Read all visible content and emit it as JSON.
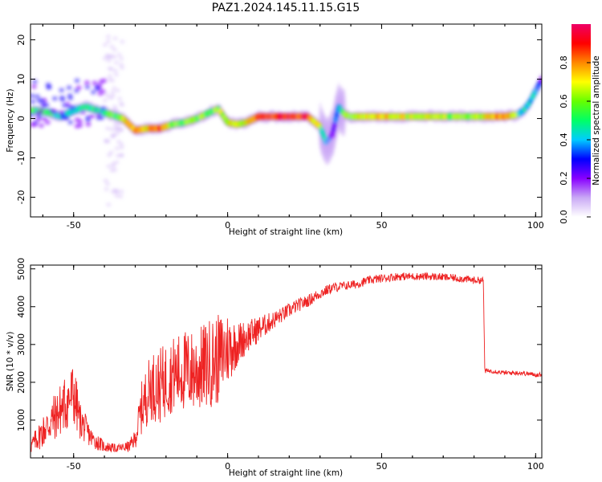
{
  "figure_title": "PAZ1.2024.145.11.15.G15",
  "chart_data": [
    {
      "type": "heatmap",
      "panel": "spectrogram",
      "xlabel": "Height of straight line (km)",
      "ylabel": "Frequency (Hz)",
      "xlim": [
        -64,
        102
      ],
      "ylim": [
        -25,
        24
      ],
      "x_ticks": [
        -50,
        0,
        50,
        100
      ],
      "y_ticks": [
        -20,
        -10,
        0,
        10,
        20
      ],
      "colorbar": {
        "label": "Normalized spectral amplitude",
        "range": [
          0.0,
          1.0
        ],
        "ticks": [
          0.0,
          0.2,
          0.4,
          0.6,
          0.8
        ],
        "colormap": [
          "#ffffff",
          "#c9a9f5",
          "#8800ff",
          "#0000ff",
          "#00ccff",
          "#00ff66",
          "#66ff00",
          "#ffff00",
          "#ff8800",
          "#ff0000",
          "#ee0066"
        ]
      },
      "ridge": {
        "x": [
          -62,
          -58,
          -54,
          -50,
          -46,
          -42,
          -38,
          -34,
          -30,
          -26,
          -22,
          -18,
          -14,
          -10,
          -6,
          -3,
          0,
          3,
          6,
          10,
          14,
          20,
          26,
          30,
          32,
          34,
          36,
          38,
          40,
          45,
          50,
          55,
          60,
          70,
          80,
          90,
          94,
          96,
          98,
          100,
          102
        ],
        "y": [
          2,
          1.5,
          0.5,
          2,
          3,
          2,
          1,
          0,
          -3,
          -2.5,
          -2.5,
          -1.5,
          -1,
          0,
          1.5,
          2.5,
          -1,
          -1.5,
          -1,
          0.5,
          0.5,
          0.5,
          0.5,
          -2,
          -6,
          -4,
          3,
          1,
          0.5,
          0.5,
          0.5,
          0.5,
          0.5,
          0.5,
          0.5,
          0.5,
          1,
          2,
          4,
          7,
          10
        ],
        "amplitude": [
          0.5,
          0.55,
          0.45,
          0.4,
          0.45,
          0.45,
          0.55,
          0.6,
          0.85,
          0.7,
          0.85,
          0.6,
          0.55,
          0.6,
          0.55,
          0.6,
          0.7,
          0.65,
          0.7,
          0.85,
          0.9,
          0.95,
          0.9,
          0.6,
          0.3,
          0.25,
          0.4,
          0.55,
          0.6,
          0.65,
          0.75,
          0.7,
          0.65,
          0.65,
          0.6,
          0.85,
          0.55,
          0.45,
          0.4,
          0.35,
          0.3
        ]
      }
    },
    {
      "type": "line",
      "panel": "snr",
      "xlabel": "Height of straight line (km)",
      "ylabel": "SNR (10 * v/v)",
      "xlim": [
        -64,
        102
      ],
      "ylim": [
        0,
        5100
      ],
      "x_ticks": [
        -50,
        0,
        50,
        100
      ],
      "y_ticks": [
        1000,
        2000,
        3000,
        4000,
        5000
      ],
      "color": "#ee2222",
      "series": [
        {
          "x": [
            -64,
            -60,
            -56,
            -52,
            -50,
            -48,
            -44,
            -40,
            -36,
            -32,
            -30,
            -28,
            -25,
            -22,
            -18,
            -14,
            -10,
            -6,
            -3,
            0,
            3,
            6,
            10,
            14,
            18,
            22,
            26,
            30,
            34,
            38,
            42,
            46,
            50,
            55,
            60,
            65,
            70,
            75,
            80,
            83,
            83.5,
            86,
            90,
            95,
            100,
            102
          ],
          "y": [
            300,
            700,
            1100,
            1500,
            1700,
            1000,
            500,
            300,
            250,
            300,
            500,
            1300,
            1900,
            1900,
            2200,
            2300,
            2300,
            2500,
            2600,
            2900,
            3000,
            3200,
            3400,
            3600,
            3800,
            4000,
            4150,
            4350,
            4500,
            4550,
            4600,
            4700,
            4750,
            4800,
            4800,
            4800,
            4780,
            4750,
            4700,
            4700,
            2300,
            2300,
            2250,
            2250,
            2200,
            2200
          ],
          "noise": [
            200,
            450,
            650,
            800,
            900,
            500,
            250,
            150,
            100,
            150,
            250,
            700,
            900,
            1000,
            1000,
            1100,
            1100,
            1200,
            1200,
            1000,
            600,
            450,
            350,
            250,
            200,
            180,
            160,
            150,
            130,
            120,
            120,
            110,
            110,
            110,
            100,
            100,
            100,
            100,
            100,
            80,
            60,
            60,
            60,
            60,
            60,
            60
          ]
        }
      ]
    }
  ]
}
